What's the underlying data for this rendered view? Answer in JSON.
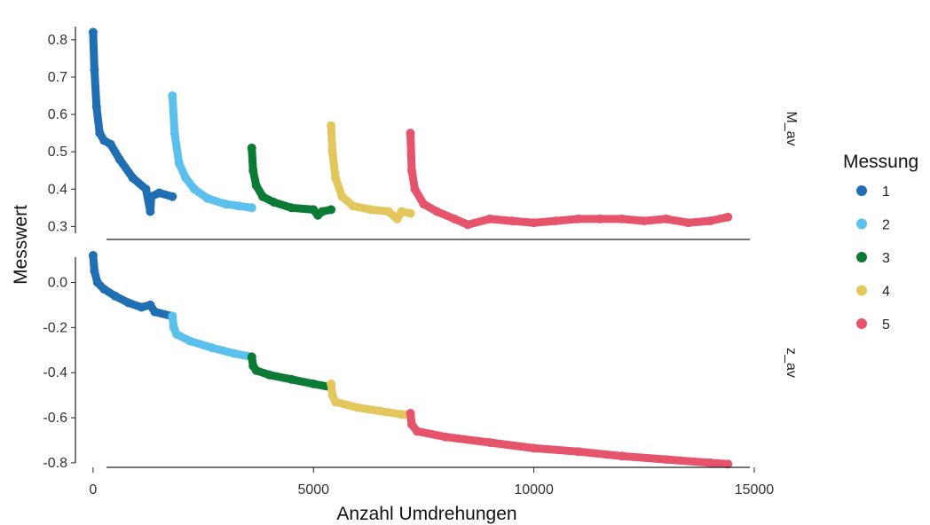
{
  "chart_data": {
    "type": "scatter",
    "xlabel": "Anzahl Umdrehungen",
    "ylabel": "Messwert",
    "xlim": [
      -400,
      14900
    ],
    "x_ticks": [
      0,
      5000,
      10000,
      15000
    ],
    "legend": {
      "title": "Messung",
      "position": "right"
    },
    "series": [
      {
        "name": "1",
        "color": "#1F6FB2"
      },
      {
        "name": "2",
        "color": "#5BC0EB"
      },
      {
        "name": "3",
        "color": "#0B7A34"
      },
      {
        "name": "4",
        "color": "#E3C75C"
      },
      {
        "name": "5",
        "color": "#E5546B"
      }
    ],
    "facets": [
      {
        "label": "M_av",
        "ylim": [
          0.27,
          0.84
        ],
        "y_ticks": [
          0.3,
          0.4,
          0.5,
          0.6,
          0.7,
          0.8
        ],
        "series_points": [
          [
            [
              0,
              0.82
            ],
            [
              30,
              0.72
            ],
            [
              80,
              0.62
            ],
            [
              150,
              0.55
            ],
            [
              250,
              0.53
            ],
            [
              400,
              0.52
            ],
            [
              600,
              0.48
            ],
            [
              900,
              0.43
            ],
            [
              1200,
              0.4
            ],
            [
              1300,
              0.34
            ],
            [
              1320,
              0.38
            ],
            [
              1500,
              0.39
            ],
            [
              1800,
              0.38
            ]
          ],
          [
            [
              1800,
              0.65
            ],
            [
              1850,
              0.55
            ],
            [
              1950,
              0.47
            ],
            [
              2100,
              0.43
            ],
            [
              2300,
              0.4
            ],
            [
              2600,
              0.375
            ],
            [
              3000,
              0.36
            ],
            [
              3300,
              0.355
            ],
            [
              3600,
              0.35
            ]
          ],
          [
            [
              3600,
              0.51
            ],
            [
              3630,
              0.45
            ],
            [
              3700,
              0.41
            ],
            [
              3850,
              0.38
            ],
            [
              4100,
              0.365
            ],
            [
              4500,
              0.35
            ],
            [
              5000,
              0.345
            ],
            [
              5100,
              0.33
            ],
            [
              5200,
              0.34
            ],
            [
              5400,
              0.345
            ]
          ],
          [
            [
              5400,
              0.57
            ],
            [
              5430,
              0.5
            ],
            [
              5500,
              0.43
            ],
            [
              5650,
              0.38
            ],
            [
              5900,
              0.355
            ],
            [
              6300,
              0.345
            ],
            [
              6700,
              0.34
            ],
            [
              6900,
              0.32
            ],
            [
              7000,
              0.34
            ],
            [
              7200,
              0.335
            ]
          ],
          [
            [
              7200,
              0.55
            ],
            [
              7230,
              0.45
            ],
            [
              7300,
              0.4
            ],
            [
              7500,
              0.36
            ],
            [
              7800,
              0.34
            ],
            [
              8200,
              0.32
            ],
            [
              8500,
              0.305
            ],
            [
              9000,
              0.32
            ],
            [
              9500,
              0.315
            ],
            [
              10000,
              0.31
            ],
            [
              10500,
              0.315
            ],
            [
              11000,
              0.32
            ],
            [
              11500,
              0.32
            ],
            [
              12000,
              0.32
            ],
            [
              12500,
              0.315
            ],
            [
              13000,
              0.32
            ],
            [
              13500,
              0.31
            ],
            [
              14000,
              0.315
            ],
            [
              14400,
              0.325
            ]
          ]
        ]
      },
      {
        "label": "z_av",
        "ylim": [
          -0.82,
          0.12
        ],
        "y_ticks": [
          0.0,
          -0.2,
          -0.4,
          -0.6,
          -0.8
        ],
        "series_points": [
          [
            [
              0,
              0.12
            ],
            [
              30,
              0.05
            ],
            [
              100,
              0.0
            ],
            [
              250,
              -0.03
            ],
            [
              500,
              -0.06
            ],
            [
              800,
              -0.09
            ],
            [
              1100,
              -0.11
            ],
            [
              1300,
              -0.1
            ],
            [
              1400,
              -0.13
            ],
            [
              1800,
              -0.15
            ]
          ],
          [
            [
              1800,
              -0.15
            ],
            [
              1830,
              -0.2
            ],
            [
              1900,
              -0.23
            ],
            [
              2200,
              -0.26
            ],
            [
              2700,
              -0.29
            ],
            [
              3200,
              -0.315
            ],
            [
              3600,
              -0.33
            ]
          ],
          [
            [
              3600,
              -0.33
            ],
            [
              3630,
              -0.37
            ],
            [
              3700,
              -0.39
            ],
            [
              4000,
              -0.41
            ],
            [
              4500,
              -0.43
            ],
            [
              5000,
              -0.45
            ],
            [
              5400,
              -0.465
            ]
          ],
          [
            [
              5400,
              -0.45
            ],
            [
              5430,
              -0.5
            ],
            [
              5500,
              -0.53
            ],
            [
              6000,
              -0.555
            ],
            [
              6500,
              -0.57
            ],
            [
              7000,
              -0.585
            ],
            [
              7200,
              -0.59
            ]
          ],
          [
            [
              7200,
              -0.58
            ],
            [
              7230,
              -0.63
            ],
            [
              7350,
              -0.66
            ],
            [
              8000,
              -0.685
            ],
            [
              9000,
              -0.71
            ],
            [
              10000,
              -0.735
            ],
            [
              11000,
              -0.75
            ],
            [
              12000,
              -0.77
            ],
            [
              13000,
              -0.785
            ],
            [
              14000,
              -0.8
            ],
            [
              14400,
              -0.805
            ]
          ]
        ]
      }
    ]
  }
}
